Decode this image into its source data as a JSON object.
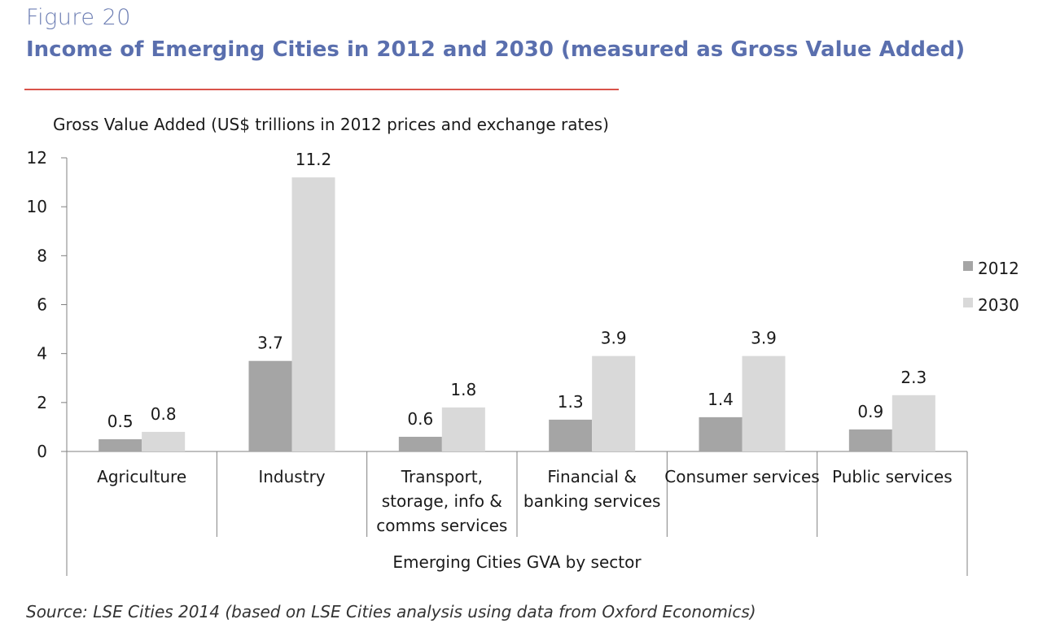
{
  "figure": {
    "label": "Figure 20",
    "title": "Income of Emerging Cities in 2012 and 2030 (measured as Gross Value Added)",
    "source": "Source: LSE Cities 2014 (based on LSE Cities analysis using data from Oxford Economics)"
  },
  "colors": {
    "label": "#6e7fb4",
    "title": "#5a6fae",
    "rule": "#d9534a",
    "series_2012": "#a5a5a5",
    "series_2030": "#d9d9d9"
  },
  "chart_data": {
    "type": "bar",
    "ylabel": "Gross Value Added (US$ trillions in 2012 prices and exchange rates)",
    "xlabel": "Emerging Cities GVA by sector",
    "categories": [
      [
        "Agriculture"
      ],
      [
        "Industry"
      ],
      [
        "Transport,",
        "storage, info &",
        "comms services"
      ],
      [
        "Financial &",
        "banking services"
      ],
      [
        "Consumer services"
      ],
      [
        "Public services"
      ]
    ],
    "series": [
      {
        "name": "2012",
        "values": [
          0.5,
          3.7,
          0.6,
          1.3,
          1.4,
          0.9
        ],
        "labels": [
          "0.5",
          "3.7",
          "0.6",
          "1.3",
          "1.4",
          "0.9"
        ]
      },
      {
        "name": "2030",
        "values": [
          0.8,
          11.2,
          1.8,
          3.9,
          3.9,
          2.3
        ],
        "labels": [
          "0.8",
          "11.2",
          "1.8",
          "3.9",
          "3.9",
          "2.3"
        ]
      }
    ],
    "ylim": [
      0,
      12
    ],
    "yticks": [
      "0",
      "2",
      "4",
      "6",
      "8",
      "10",
      "12"
    ],
    "grid": false,
    "legend_position": "right"
  }
}
